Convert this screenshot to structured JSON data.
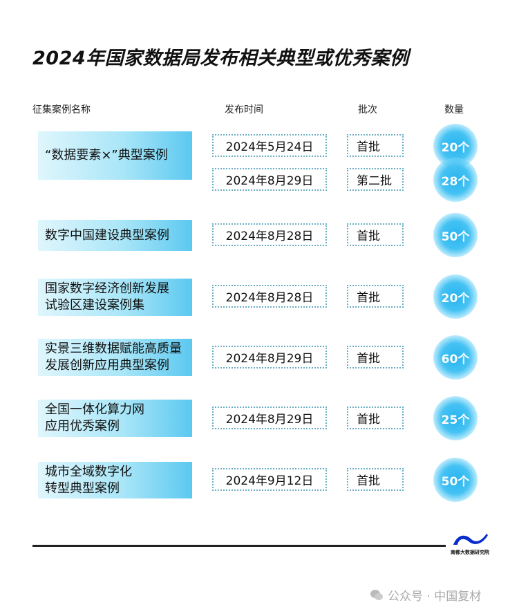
{
  "title": "2024年国家数据局发布相关典型或优秀案例",
  "headers": {
    "name": "征集案例名称",
    "date": "发布时间",
    "batch": "批次",
    "count": "数量"
  },
  "rows": [
    {
      "name_lines": [
        "“数据要素×”典型案例"
      ],
      "entries": [
        {
          "date": "2024年5月24日",
          "batch": "首批",
          "count": "20个"
        },
        {
          "date": "2024年8月29日",
          "batch": "第二批",
          "count": "28个"
        }
      ]
    },
    {
      "name_lines": [
        "数字中国建设典型案例"
      ],
      "entries": [
        {
          "date": "2024年8月28日",
          "batch": "首批",
          "count": "50个"
        }
      ]
    },
    {
      "name_lines": [
        "国家数字经济创新发展",
        "试验区建设案例集"
      ],
      "entries": [
        {
          "date": "2024年8月28日",
          "batch": "首批",
          "count": "20个"
        }
      ]
    },
    {
      "name_lines": [
        "实景三维数据赋能高质量",
        "发展创新应用典型案例"
      ],
      "entries": [
        {
          "date": "2024年8月29日",
          "batch": "首批",
          "count": "60个"
        }
      ]
    },
    {
      "name_lines": [
        "全国一体化算力网",
        "应用优秀案例"
      ],
      "entries": [
        {
          "date": "2024年8月29日",
          "batch": "首批",
          "count": "25个"
        }
      ]
    },
    {
      "name_lines": [
        "城市全域数字化",
        "转型典型案例"
      ],
      "entries": [
        {
          "date": "2024年9月12日",
          "batch": "首批",
          "count": "50个"
        }
      ]
    }
  ],
  "logo_text": "南都大数据研究院",
  "watermark": "公众号 · 中国复材",
  "colors": {
    "accent": "#27b4f0",
    "logo": "#0a2ccc"
  }
}
